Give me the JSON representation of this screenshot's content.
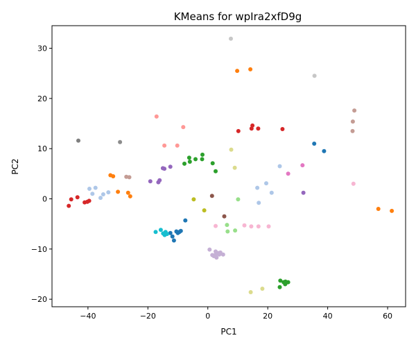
{
  "chart_data": {
    "type": "scatter",
    "title": "KMeans for wpIra2xfD9g",
    "xlabel": "PC1",
    "ylabel": "PC2",
    "xlim": [
      -52,
      66
    ],
    "ylim": [
      -21.5,
      34.5
    ],
    "xticks": [
      -40,
      -20,
      0,
      20,
      40,
      60
    ],
    "yticks": [
      -20,
      -10,
      0,
      10,
      20,
      30
    ],
    "grid": false,
    "series": [
      {
        "color": "#1f77b4",
        "points": [
          [
            -12.5,
            -6.8
          ],
          [
            -11.8,
            -7.5
          ],
          [
            -11.3,
            -8.3
          ],
          [
            -10.5,
            -6.5
          ],
          [
            -10.0,
            -6.8
          ],
          [
            -9.5,
            -6.6
          ],
          [
            -9.0,
            -6.4
          ],
          [
            -7.5,
            -4.3
          ],
          [
            35.5,
            11.0
          ],
          [
            38.8,
            9.5
          ]
        ]
      },
      {
        "color": "#aec7e8",
        "points": [
          [
            -39.5,
            2.0
          ],
          [
            -38.5,
            1.0
          ],
          [
            -37.5,
            2.2
          ],
          [
            -35.8,
            0.2
          ],
          [
            -34.9,
            0.9
          ],
          [
            -33.2,
            1.3
          ],
          [
            16.5,
            2.2
          ],
          [
            17.0,
            -0.8
          ],
          [
            19.5,
            3.1
          ],
          [
            21.3,
            1.2
          ],
          [
            24.0,
            6.5
          ]
        ]
      },
      {
        "color": "#ff7f0e",
        "points": [
          [
            -32.5,
            4.7
          ],
          [
            -31.6,
            4.5
          ],
          [
            -30.0,
            1.4
          ],
          [
            -26.6,
            1.2
          ],
          [
            -25.9,
            0.5
          ],
          [
            9.8,
            25.5
          ],
          [
            14.2,
            25.8
          ],
          [
            56.9,
            -2.0
          ],
          [
            61.4,
            -2.4
          ]
        ]
      },
      {
        "color": "#ffbb78",
        "points": []
      },
      {
        "color": "#2ca02c",
        "points": [
          [
            -7.8,
            7.0
          ],
          [
            -6.2,
            8.2
          ],
          [
            -6.0,
            7.4
          ],
          [
            -4.1,
            7.9
          ],
          [
            -1.8,
            8.8
          ],
          [
            -1.9,
            7.9
          ],
          [
            1.6,
            7.1
          ],
          [
            2.6,
            5.5
          ],
          [
            24.2,
            -16.3
          ],
          [
            24.0,
            -17.6
          ],
          [
            25.3,
            -16.6
          ],
          [
            25.9,
            -16.5
          ],
          [
            26.2,
            -16.7
          ],
          [
            26.8,
            -16.6
          ],
          [
            25.8,
            -17.0
          ]
        ]
      },
      {
        "color": "#98df8a",
        "points": [
          [
            6.4,
            -5.2
          ],
          [
            6.6,
            -6.5
          ],
          [
            9.1,
            -6.3
          ],
          [
            10.1,
            -0.1
          ]
        ]
      },
      {
        "color": "#d62728",
        "points": [
          [
            -46.4,
            -1.4
          ],
          [
            -45.6,
            -0.1
          ],
          [
            -43.5,
            0.3
          ],
          [
            -41.1,
            -0.7
          ],
          [
            -40.2,
            -0.6
          ],
          [
            -39.6,
            -0.4
          ],
          [
            10.2,
            13.5
          ],
          [
            14.6,
            14.0
          ],
          [
            14.9,
            14.6
          ],
          [
            16.8,
            14.0
          ],
          [
            24.9,
            13.9
          ]
        ]
      },
      {
        "color": "#ff9896",
        "points": [
          [
            -17.1,
            16.4
          ],
          [
            -14.5,
            10.6
          ],
          [
            -8.2,
            14.3
          ],
          [
            -10.2,
            10.6
          ]
        ]
      },
      {
        "color": "#9467bd",
        "points": [
          [
            -19.2,
            3.5
          ],
          [
            -16.5,
            3.3
          ],
          [
            -16.1,
            3.7
          ],
          [
            -15.0,
            6.1
          ],
          [
            -14.5,
            6.0
          ],
          [
            -12.5,
            6.4
          ],
          [
            31.9,
            1.2
          ]
        ]
      },
      {
        "color": "#c5b0d5",
        "points": [
          [
            0.6,
            -10.1
          ],
          [
            1.5,
            -11.2
          ],
          [
            2.0,
            -11.4
          ],
          [
            2.6,
            -11.1
          ],
          [
            3.5,
            -10.8
          ],
          [
            4.2,
            -10.7
          ],
          [
            3.8,
            -11.1
          ],
          [
            5.1,
            -11.1
          ],
          [
            2.9,
            -11.7
          ],
          [
            2.6,
            -10.5
          ]
        ]
      },
      {
        "color": "#8c564b",
        "points": [
          [
            1.4,
            0.6
          ],
          [
            5.5,
            -3.5
          ]
        ]
      },
      {
        "color": "#c49c94",
        "points": [
          [
            -27.2,
            4.4
          ],
          [
            -26.2,
            4.3
          ],
          [
            48.3,
            13.5
          ],
          [
            48.4,
            15.4
          ],
          [
            48.9,
            17.6
          ]
        ]
      },
      {
        "color": "#e377c2",
        "points": [
          [
            26.8,
            5.0
          ],
          [
            31.6,
            6.7
          ]
        ]
      },
      {
        "color": "#f7b6d2",
        "points": [
          [
            2.6,
            -5.4
          ],
          [
            12.2,
            -5.3
          ],
          [
            14.5,
            -5.5
          ],
          [
            16.9,
            -5.5
          ],
          [
            20.3,
            -5.5
          ],
          [
            48.6,
            3.0
          ]
        ]
      },
      {
        "color": "#7f7f7f",
        "points": [
          [
            -43.2,
            11.6
          ]
        ]
      },
      {
        "color": "#c7c7c7",
        "points": [
          [
            7.7,
            31.9
          ],
          [
            35.6,
            24.5
          ]
        ]
      },
      {
        "color": "#bcbd22",
        "points": [
          [
            -4.7,
            -0.1
          ],
          [
            -1.2,
            -2.3
          ]
        ]
      },
      {
        "color": "#dbdb8d",
        "points": [
          [
            7.8,
            9.8
          ],
          [
            9.0,
            6.2
          ],
          [
            14.3,
            -18.6
          ],
          [
            18.2,
            -17.9
          ]
        ]
      },
      {
        "color": "#17becf",
        "points": [
          [
            -17.4,
            -6.6
          ],
          [
            -15.7,
            -6.2
          ],
          [
            -14.9,
            -6.9
          ],
          [
            -14.4,
            -7.2
          ],
          [
            -14.1,
            -6.6
          ],
          [
            -13.6,
            -7.0
          ]
        ]
      },
      {
        "color": "#9edae5",
        "points": []
      },
      {
        "color": "#8c8c8c",
        "points": [
          [
            -29.3,
            11.3
          ]
        ]
      }
    ]
  }
}
